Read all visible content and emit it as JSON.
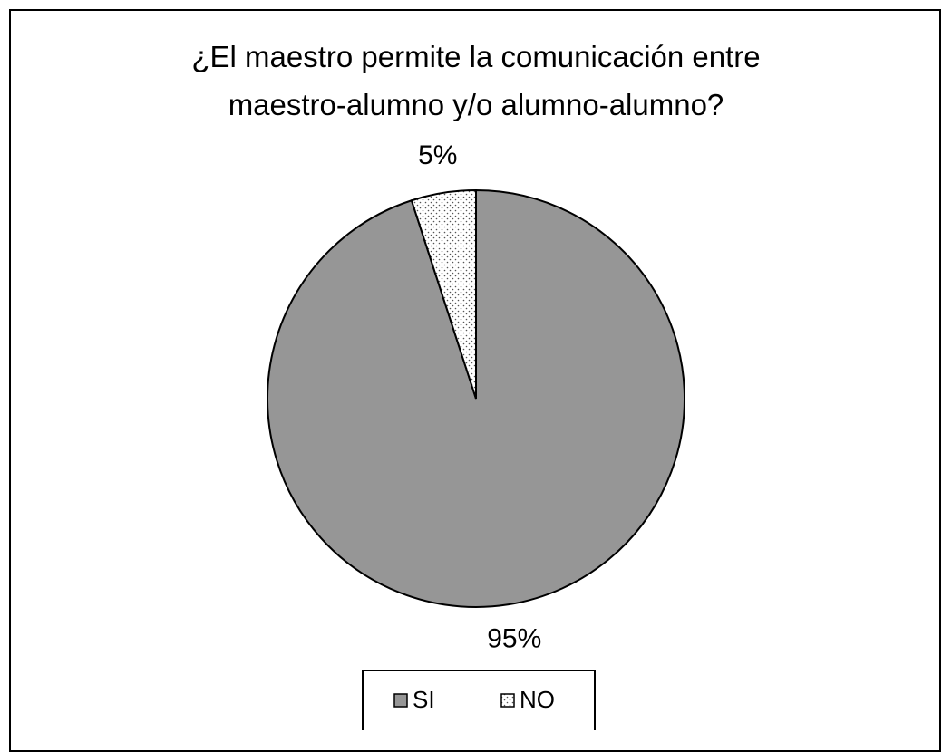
{
  "chart_data": {
    "type": "pie",
    "title": "¿El maestro permite la comunicación entre maestro-alumno y/o alumno-alumno?",
    "categories": [
      "SI",
      "NO"
    ],
    "values": [
      95,
      5
    ],
    "value_labels": [
      "95%",
      "5%"
    ],
    "colors": [
      "#969696",
      "#ffffff"
    ],
    "dotted": [
      false,
      true
    ],
    "legend": "bottom"
  }
}
